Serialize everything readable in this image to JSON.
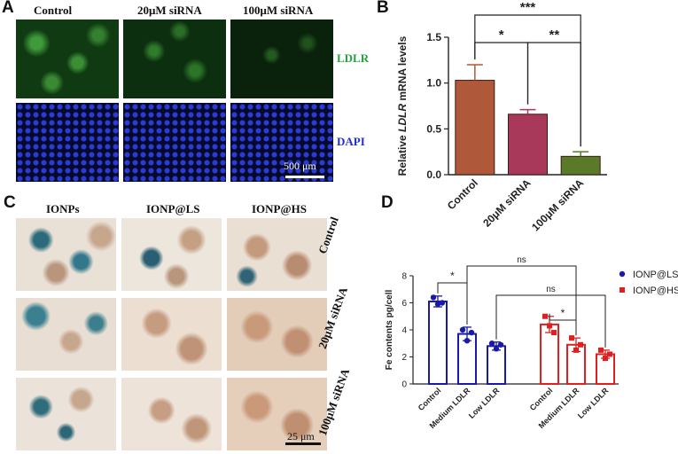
{
  "panels": {
    "a": "A",
    "b": "B",
    "c": "C",
    "d": "D"
  },
  "panel_a": {
    "columns": [
      "Control",
      "20μM siRNA",
      "100μM siRNA"
    ],
    "channels": [
      {
        "name": "LDLR",
        "color": "#1fa33a"
      },
      {
        "name": "DAPI",
        "color": "#1f2fc8"
      }
    ],
    "scale_bar": "500 μm"
  },
  "panel_c": {
    "columns": [
      "IONPs",
      "IONP@LS",
      "IONP@HS"
    ],
    "rows": [
      "Control",
      "20μM siRNA",
      "100μM siRNA"
    ],
    "scale_bar": "25 μm"
  },
  "chart_data": [
    {
      "type": "bar",
      "panel": "B",
      "categories": [
        "Control",
        "20μM siRNA",
        "100μM siRNA"
      ],
      "values": [
        1.03,
        0.66,
        0.2
      ],
      "errors": [
        0.17,
        0.05,
        0.05
      ],
      "colors": [
        "#b0593a",
        "#a8395a",
        "#5a7a2a"
      ],
      "ylabel_prefix": "Relative ",
      "ylabel_italic": "LDLR",
      "ylabel_suffix": " mRNA levels",
      "ylim": [
        0,
        1.5
      ],
      "yticks": [
        "0.0",
        "0.5",
        "1.0",
        "1.5"
      ],
      "significance": [
        {
          "from": 0,
          "to": 2,
          "label": "***"
        },
        {
          "from": 0,
          "to": 1,
          "label": "*"
        },
        {
          "from": 1,
          "to": 2,
          "label": "**"
        }
      ]
    },
    {
      "type": "bar",
      "panel": "D",
      "ylabel": "Fe contents pg/cell",
      "ylim": [
        0,
        8
      ],
      "yticks": [
        "0",
        "2",
        "4",
        "6",
        "8"
      ],
      "legend": [
        {
          "name": "IONP@LS",
          "color": "#1a1aa8",
          "marker": "circle"
        },
        {
          "name": "IONP@HS",
          "color": "#e02020",
          "marker": "square"
        }
      ],
      "groups": [
        {
          "series": "IONP@LS",
          "color": "#1a1aa8",
          "categories": [
            "Control",
            "Medium LDLR",
            "Low LDLR"
          ],
          "values": [
            6.1,
            3.7,
            2.8
          ],
          "errors": [
            0.4,
            0.5,
            0.3
          ],
          "points": [
            [
              6.4,
              5.9,
              6.0
            ],
            [
              4.0,
              3.2,
              3.8
            ],
            [
              3.0,
              2.6,
              2.9
            ]
          ]
        },
        {
          "series": "IONP@HS",
          "color": "#e02020",
          "categories": [
            "Control",
            "Medium LDLR",
            "Low LDLR"
          ],
          "values": [
            4.4,
            2.9,
            2.2
          ],
          "errors": [
            0.6,
            0.5,
            0.3
          ],
          "points": [
            [
              5.0,
              4.3,
              3.8
            ],
            [
              3.4,
              2.5,
              2.9
            ],
            [
              2.5,
              1.9,
              2.2
            ]
          ]
        }
      ],
      "significance": [
        {
          "from": [
            0,
            0
          ],
          "to": [
            0,
            1
          ],
          "label": "*"
        },
        {
          "from": [
            0,
            1
          ],
          "to": [
            1,
            1
          ],
          "label": "ns"
        },
        {
          "from": [
            0,
            2
          ],
          "to": [
            1,
            2
          ],
          "label": "ns"
        },
        {
          "from": [
            1,
            0
          ],
          "to": [
            1,
            1
          ],
          "label": "*"
        }
      ]
    }
  ]
}
